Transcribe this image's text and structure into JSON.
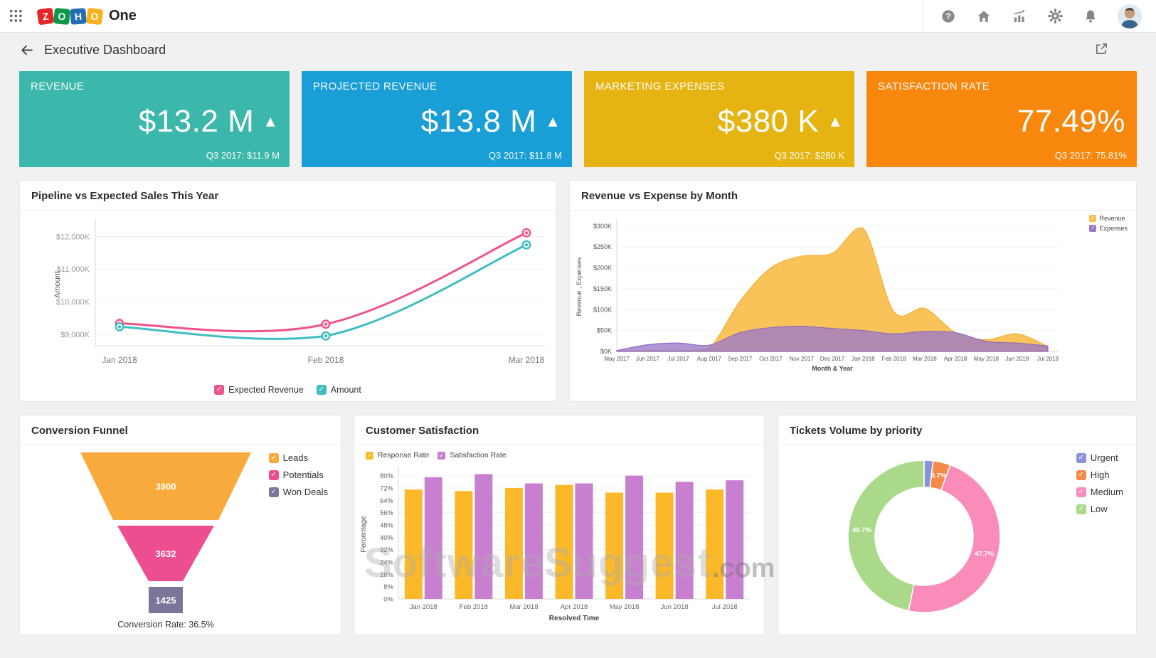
{
  "topbar": {
    "product": "One",
    "logo_letters": [
      "Z",
      "O",
      "H",
      "O"
    ],
    "logo_colors": [
      "#e42527",
      "#089949",
      "#226db4",
      "#f9b21d"
    ],
    "icons": [
      "app-launcher",
      "help",
      "home",
      "analytics",
      "settings",
      "notifications",
      "avatar"
    ]
  },
  "header": {
    "title": "Executive Dashboard"
  },
  "kpis": [
    {
      "label": "REVENUE",
      "value": "$13.2 M",
      "trend": "▲",
      "sub": "Q3 2017: $11.9 M",
      "color": "#3bb7ab"
    },
    {
      "label": "PROJECTED REVENUE",
      "value": "$13.8 M",
      "trend": "▲",
      "sub": "Q3 2017: $11.8 M",
      "color": "#1a9ed6"
    },
    {
      "label": "MARKETING EXPENSES",
      "value": "$380 K",
      "trend": "▲",
      "sub": "Q3 2017: $280 K",
      "color": "#e6b412"
    },
    {
      "label": "SATISFACTION RATE",
      "value": "77.49%",
      "trend": "",
      "sub": "Q3 2017: 75.81%",
      "color": "#f8870e"
    }
  ],
  "watermark": {
    "text": "SoftwareSuggest",
    "suffix": ".com"
  },
  "chart_data": [
    {
      "id": "pipeline",
      "type": "line",
      "title": "Pipeline vs Expected Sales This Year",
      "x": [
        "Jan 2018",
        "Feb 2018",
        "Mar 2018"
      ],
      "series": [
        {
          "name": "Expected Revenue",
          "color": "#f0538c",
          "values": [
            9330,
            9310,
            12110
          ]
        },
        {
          "name": "Amount",
          "color": "#40bdc0",
          "values": [
            9230,
            8950,
            11740
          ]
        }
      ],
      "ylabel": "Amount",
      "yticks": [
        9000,
        10000,
        11000,
        12000
      ],
      "ytick_labels": [
        "$9,000K",
        "$10,000K",
        "$11,000K",
        "$12,000K"
      ],
      "ylim": [
        8650,
        12400
      ],
      "grid": true,
      "legend_position": "bottom"
    },
    {
      "id": "revenue_expense",
      "type": "area",
      "title": "Revenue vs Expense by Month",
      "x": [
        "May 2017",
        "Jun 2017",
        "Jul 2017",
        "Aug 2017",
        "Sep 2017",
        "Oct 2017",
        "Nov 2017",
        "Dec 2017",
        "Jan 2018",
        "Feb 2018",
        "Mar 2018",
        "Apr 2018",
        "May 2018",
        "Jun 2018",
        "Jul 2018"
      ],
      "series": [
        {
          "name": "Revenue",
          "color": "#f9be4b",
          "values": [
            1,
            2,
            2,
            8,
            120,
            200,
            228,
            235,
            295,
            95,
            103,
            45,
            28,
            42,
            12
          ]
        },
        {
          "name": "Expenses",
          "color": "#9b79c9",
          "values": [
            2,
            16,
            20,
            15,
            45,
            57,
            60,
            55,
            50,
            42,
            48,
            45,
            24,
            20,
            13
          ]
        }
      ],
      "xlabel": "Month & Year",
      "ylabel": "Revenue , Expenses",
      "yticks": [
        0,
        50,
        100,
        150,
        200,
        250,
        300
      ],
      "ytick_labels": [
        "$0K",
        "$50K",
        "$100K",
        "$150K",
        "$200K",
        "$250K",
        "$300K"
      ],
      "ylim": [
        0,
        310
      ],
      "grid": true,
      "legend_position": "top-right"
    },
    {
      "id": "funnel",
      "type": "funnel",
      "title": "Conversion Funnel",
      "stages": [
        {
          "name": "Leads",
          "color": "#f8ab3c",
          "value": "3900"
        },
        {
          "name": "Potentials",
          "color": "#ed4e90",
          "value": "3632"
        },
        {
          "name": "Won Deals",
          "color": "#7b7699",
          "value": "1425"
        }
      ],
      "footer": "Conversion Rate: 36.5%",
      "legend_position": "right"
    },
    {
      "id": "satisfaction",
      "type": "bar",
      "title": "Customer Satisfaction",
      "categories": [
        "Jan 2018",
        "Feb 2018",
        "Mar 2018",
        "Apr 2018",
        "May 2018",
        "Jun 2018",
        "Jul 2018"
      ],
      "series": [
        {
          "name": "Response Rate",
          "color": "#fbb929",
          "values": [
            71,
            70,
            72,
            74,
            69,
            69,
            71
          ]
        },
        {
          "name": "Satisfaction Rate",
          "color": "#c97fd0",
          "values": [
            79,
            81,
            75,
            75,
            80,
            76,
            77
          ]
        }
      ],
      "xlabel": "Resolved Time",
      "ylabel": "Percentage",
      "yticks": [
        0,
        8,
        16,
        24,
        32,
        40,
        48,
        56,
        64,
        72,
        80
      ],
      "ylim": [
        0,
        84
      ],
      "grid": true,
      "legend_position": "top-left"
    },
    {
      "id": "tickets",
      "type": "donut",
      "title": "Tickets Volume by priority",
      "slices": [
        {
          "name": "Urgent",
          "color": "#8b93d8",
          "value": 1.9,
          "label": ""
        },
        {
          "name": "High",
          "color": "#f58a4b",
          "value": 3.7,
          "label": "3.7%"
        },
        {
          "name": "Medium",
          "color": "#fa8cba",
          "value": 47.7,
          "label": "47.7%"
        },
        {
          "name": "Low",
          "color": "#abd98a",
          "value": 46.7,
          "label": "46.7%"
        }
      ],
      "legend_position": "right"
    }
  ]
}
